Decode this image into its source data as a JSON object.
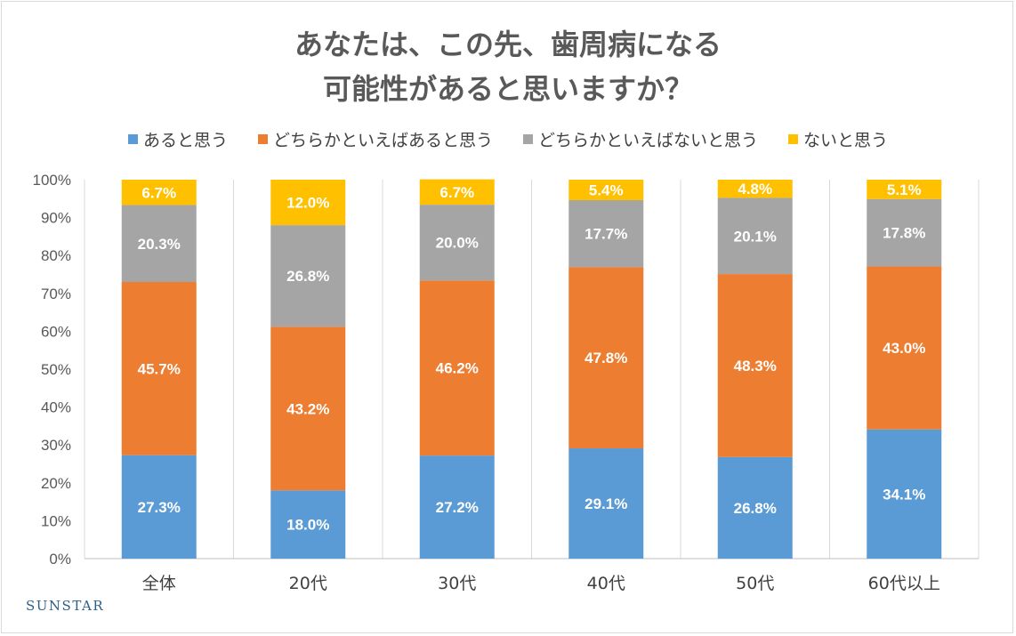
{
  "title_lines": [
    "あなたは、この先、歯周病になる",
    "可能性があると思いますか？"
  ],
  "brand": "SUNSTAR",
  "chart_data": {
    "type": "bar",
    "stacked": true,
    "categories": [
      "全体",
      "20代",
      "30代",
      "40代",
      "50代",
      "60代以上"
    ],
    "series": [
      {
        "name": "あると思う",
        "color": "#5b9bd5",
        "values": [
          27.3,
          18.0,
          27.2,
          29.1,
          26.8,
          34.1
        ]
      },
      {
        "name": "どちらかといえばあると思う",
        "color": "#ed7d31",
        "values": [
          45.7,
          43.2,
          46.2,
          47.8,
          48.3,
          43.0
        ]
      },
      {
        "name": "どちらかといえばないと思う",
        "color": "#a5a5a5",
        "values": [
          20.3,
          26.8,
          20.0,
          17.7,
          20.1,
          17.8
        ]
      },
      {
        "name": "ないと思う",
        "color": "#ffc000",
        "values": [
          6.7,
          12.0,
          6.7,
          5.4,
          4.8,
          5.1
        ]
      }
    ],
    "value_format": "{v}%",
    "data_label_color": "#ffffff",
    "y_ticks": [
      "0%",
      "10%",
      "20%",
      "30%",
      "40%",
      "50%",
      "60%",
      "70%",
      "80%",
      "90%",
      "100%"
    ],
    "ylim": [
      0,
      100
    ],
    "legend_position": "top",
    "grid": "vertical separators between categories",
    "xlabel": "",
    "ylabel": ""
  }
}
